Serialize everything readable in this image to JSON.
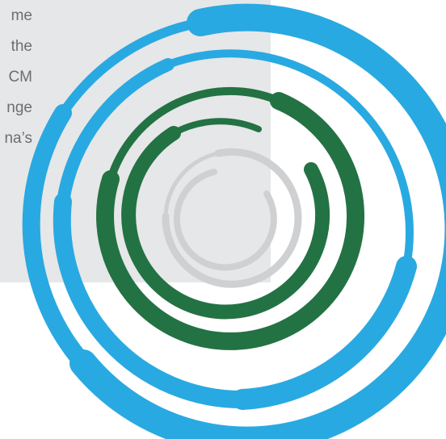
{
  "text_fragments": [
    "me",
    "the",
    "CM",
    "nge",
    "na’s"
  ],
  "colors": {
    "panel": "#e6e7e8",
    "text": "#6d6e71",
    "blue_swirl": "#29a9e1",
    "green_swirl": "#237243",
    "gray_swirl": "#cfd0d2"
  }
}
